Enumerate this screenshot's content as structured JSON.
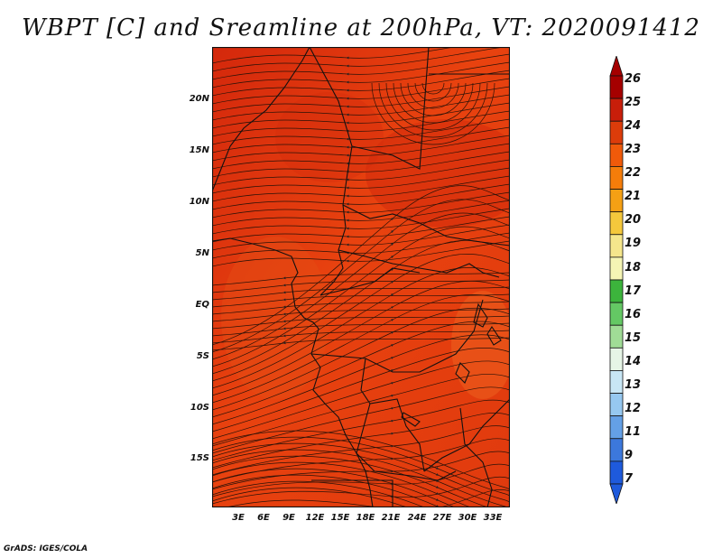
{
  "title": "WBPT [C] and Sreamline at 200hPa, VT: 2020091412",
  "credit": "GrADS: IGES/COLA",
  "map": {
    "lat_labels": [
      "20N",
      "15N",
      "10N",
      "5N",
      "EQ",
      "5S",
      "10S",
      "15S"
    ],
    "lon_labels": [
      "3E",
      "6E",
      "9E",
      "12E",
      "15E",
      "18E",
      "21E",
      "24E",
      "27E",
      "30E",
      "33E"
    ],
    "fill_color": "#e8400e",
    "warm_color": "#d42a0c",
    "cool_color": "#ee5a18"
  },
  "colorbar": {
    "labels": [
      "26",
      "25",
      "24",
      "23",
      "22",
      "21",
      "20",
      "19",
      "18",
      "17",
      "16",
      "15",
      "14",
      "13",
      "12",
      "11",
      "9",
      "7"
    ],
    "colors": [
      "#a50000",
      "#c81e0a",
      "#dc3c0a",
      "#f05a0a",
      "#f57d0a",
      "#f5a014",
      "#f5c83c",
      "#f5e68c",
      "#f5f5b4",
      "#3cb43c",
      "#64c864",
      "#a0dc96",
      "#e6f5e6",
      "#c8e6f5",
      "#96c8f0",
      "#64a0e6",
      "#3c78dc",
      "#1e5adc"
    ]
  }
}
